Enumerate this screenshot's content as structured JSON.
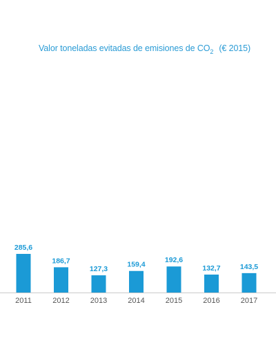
{
  "title": {
    "prefix": "Valor toneladas evitadas de emisiones de CO",
    "subscript": "2",
    "suffix": "(€ 2015)"
  },
  "colors": {
    "bar": "#1b9ad6",
    "label": "#1b9ad6",
    "title": "#2a9bd5",
    "axis": "#c9c9c9",
    "tick_label": "#555555"
  },
  "chart_data": {
    "type": "bar",
    "title": "Valor toneladas evitadas de emisiones de CO2 (€ 2015)",
    "categories": [
      "2011",
      "2012",
      "2013",
      "2014",
      "2015",
      "2016",
      "2017"
    ],
    "values": [
      285.6,
      186.7,
      127.3,
      159.4,
      192.6,
      132.7,
      143.5
    ],
    "value_labels": [
      "285,6",
      "186,7",
      "127,3",
      "159,4",
      "192,6",
      "132,7",
      "143,5"
    ],
    "xlabel": "",
    "ylabel": "",
    "ylim": [
      0,
      300
    ],
    "grid": false,
    "legend": "none"
  }
}
